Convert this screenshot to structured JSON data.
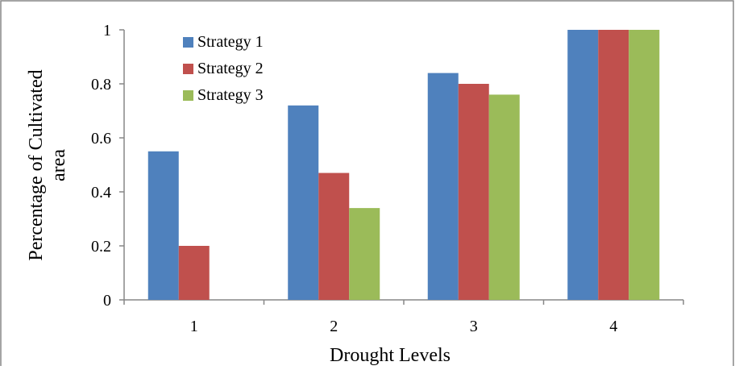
{
  "chart_data": {
    "type": "bar",
    "categories": [
      "1",
      "2",
      "3",
      "4"
    ],
    "series": [
      {
        "name": "Strategy 1",
        "values": [
          0.55,
          0.72,
          0.84,
          1.0
        ],
        "color": "#4F81BD"
      },
      {
        "name": "Strategy 2",
        "values": [
          0.2,
          0.47,
          0.8,
          1.0
        ],
        "color": "#C0504D"
      },
      {
        "name": "Strategy 3",
        "values": [
          0.0,
          0.34,
          0.76,
          1.0
        ],
        "color": "#9BBB59"
      }
    ],
    "title": "",
    "xlabel": "Drought Levels",
    "ylabel_line1": "Percentage of Cultivated",
    "ylabel_line2": "area",
    "ylim": [
      0,
      1
    ],
    "yticks": [
      "0",
      "0.2",
      "0.4",
      "0.6",
      "0.8",
      "1"
    ],
    "grid": false,
    "legend_position": "top-left"
  }
}
